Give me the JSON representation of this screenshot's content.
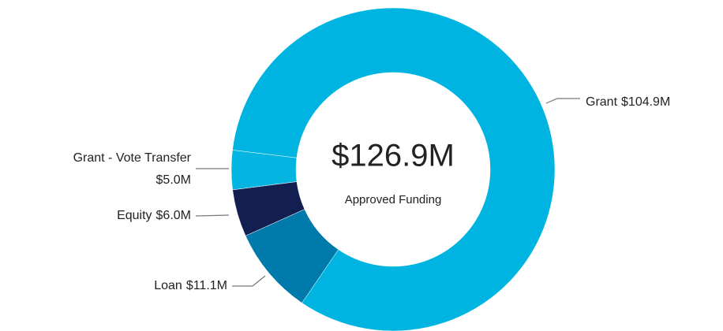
{
  "chart_data": {
    "type": "donut",
    "categories": [
      "Grant",
      "Loan",
      "Equity",
      "Grant - Vote Transfer"
    ],
    "values": [
      104.9,
      11.1,
      6.0,
      5.0
    ],
    "value_labels": [
      "$104.9M",
      "$11.1M",
      "$6.0M",
      "$5.0M"
    ],
    "colors": [
      "#00b4e1",
      "#0079ab",
      "#131e51",
      "#04b5e2"
    ],
    "center_label": "$126.9M",
    "center_sublabel": "Approved Funding"
  }
}
